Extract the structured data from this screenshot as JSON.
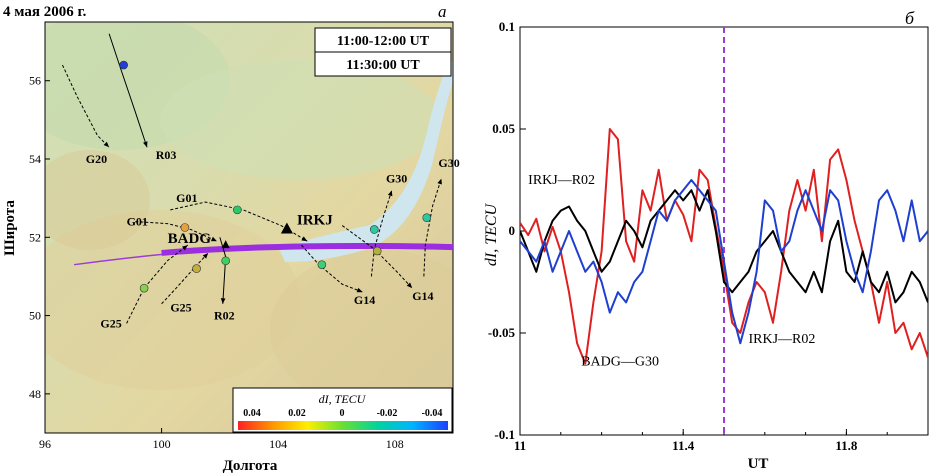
{
  "chart_data": [
    {
      "type": "map",
      "panel_letter": "а",
      "date_title": "4 мая 2006 г.",
      "time_range": "11:00-12:00 UT",
      "time_instant": "11:30:00 UT",
      "xlabel": "Долгота",
      "ylabel": "Широта",
      "xlim": [
        96,
        110
      ],
      "ylim": [
        47,
        57.5
      ],
      "xticks": [
        "96",
        "100",
        "104",
        "108"
      ],
      "yticks": [
        "48",
        "50",
        "52",
        "54",
        "56"
      ],
      "stations": [
        {
          "name": "IRKJ",
          "lon": 104.3,
          "lat": 52.2
        },
        {
          "name": "BADG",
          "lon": 102.2,
          "lat": 51.8
        }
      ],
      "tracks": [
        {
          "label": "R03",
          "style": "solid",
          "points": [
            [
              98.2,
              57.2
            ],
            [
              98.6,
              56.3
            ],
            [
              99.1,
              55.2
            ],
            [
              99.5,
              54.3
            ]
          ],
          "label_pos": [
            99.8,
            54.0
          ],
          "marker": [
            98.7,
            56.4
          ],
          "marker_color": "#1f3fd6"
        },
        {
          "label": "G20",
          "style": "dashed",
          "points": [
            [
              96.6,
              56.4
            ],
            [
              97.1,
              55.6
            ],
            [
              97.8,
              54.6
            ],
            [
              98.2,
              54.3
            ]
          ],
          "label_pos": [
            97.4,
            53.9
          ]
        },
        {
          "label": "G01",
          "style": "dashed",
          "points": [
            [
              100.3,
              52.7
            ],
            [
              101.5,
              52.9
            ],
            [
              102.8,
              52.7
            ],
            [
              104.1,
              52.3
            ],
            [
              105.0,
              51.9
            ]
          ],
          "label_pos": [
            100.5,
            52.9
          ],
          "marker": [
            102.6,
            52.7
          ],
          "marker_color": "#2ec86a"
        },
        {
          "label": "G01",
          "style": "dashed",
          "points": [
            [
              99.1,
              52.4
            ],
            [
              100.2,
              52.35
            ],
            [
              101.0,
              52.2
            ],
            [
              101.9,
              51.9
            ]
          ],
          "label_pos": [
            98.8,
            52.3
          ],
          "marker": [
            100.8,
            52.25
          ],
          "marker_color": "#e6a23c"
        },
        {
          "label": "G30",
          "style": "dashed",
          "points": [
            [
              107.2,
              51.0
            ],
            [
              107.3,
              51.7
            ],
            [
              107.6,
              52.5
            ],
            [
              107.9,
              53.2
            ]
          ],
          "label_pos": [
            107.7,
            53.4
          ],
          "marker": [
            107.3,
            52.2
          ],
          "marker_color": "#2ec8a0"
        },
        {
          "label": "G30",
          "style": "dashed",
          "points": [
            [
              109.0,
              51.0
            ],
            [
              109.05,
              51.8
            ],
            [
              109.3,
              52.8
            ],
            [
              109.6,
              53.5
            ]
          ],
          "label_pos": [
            109.5,
            53.8
          ],
          "marker": [
            109.1,
            52.5
          ],
          "marker_color": "#2ec8a0"
        },
        {
          "label": "G14",
          "style": "dashed",
          "points": [
            [
              104.8,
              51.8
            ],
            [
              105.4,
              51.3
            ],
            [
              106.2,
              50.8
            ],
            [
              106.9,
              50.6
            ]
          ],
          "label_pos": [
            106.6,
            50.3
          ],
          "marker": [
            105.5,
            51.3
          ],
          "marker_color": "#3ad07a"
        },
        {
          "label": "G14",
          "style": "dashed",
          "points": [
            [
              106.2,
              52.3
            ],
            [
              107.3,
              51.7
            ],
            [
              108.1,
              51.1
            ],
            [
              108.6,
              50.7
            ]
          ],
          "label_pos": [
            108.6,
            50.4
          ],
          "marker": [
            107.4,
            51.65
          ],
          "marker_color": "#b0b040"
        },
        {
          "label": "G25",
          "style": "dashed",
          "points": [
            [
              98.8,
              49.8
            ],
            [
              99.4,
              50.7
            ],
            [
              100.2,
              51.4
            ],
            [
              100.9,
              51.8
            ]
          ],
          "label_pos": [
            97.9,
            49.7
          ],
          "marker": [
            99.4,
            50.7
          ],
          "marker_color": "#8ad050"
        },
        {
          "label": "G25",
          "style": "dashed",
          "points": [
            [
              100.0,
              50.3
            ],
            [
              100.5,
              50.7
            ],
            [
              101.1,
              51.2
            ],
            [
              101.6,
              51.6
            ]
          ],
          "label_pos": [
            100.3,
            50.1
          ],
          "marker": [
            101.2,
            51.2
          ],
          "marker_color": "#c0b040"
        },
        {
          "label": "R02",
          "style": "solid",
          "points": [
            [
              102.0,
              52.0
            ],
            [
              102.2,
              51.5
            ],
            [
              102.15,
              50.9
            ],
            [
              102.1,
              50.3
            ]
          ],
          "label_pos": [
            101.8,
            49.9
          ],
          "marker": [
            102.2,
            51.4
          ],
          "marker_color": "#40d060"
        }
      ],
      "colorbar": {
        "label": "dI, TECU",
        "ticks": [
          "0.04",
          "0.02",
          "0",
          "-0.02",
          "-0.04"
        ],
        "colors": [
          "#ff2020",
          "#ff9900",
          "#ffee00",
          "#66e033",
          "#00d2a0",
          "#00b4ff",
          "#1e40ff"
        ]
      }
    },
    {
      "type": "line",
      "panel_letter": "б",
      "xlabel": "UT",
      "ylabel": "dI, TECU",
      "xlim": [
        11,
        12
      ],
      "ylim": [
        -0.1,
        0.1
      ],
      "xticks": [
        "11",
        "11.4",
        "11.8"
      ],
      "yticks": [
        "-0.1",
        "-0.05",
        "0",
        "0.05",
        "0.1"
      ],
      "vline_x": 11.5,
      "series": [
        {
          "name": "BADG—G30",
          "color": "#e02020",
          "label_pos": [
            11.15,
            -0.066
          ],
          "x": [
            11.0,
            11.02,
            11.04,
            11.06,
            11.08,
            11.1,
            11.12,
            11.14,
            11.16,
            11.18,
            11.2,
            11.22,
            11.24,
            11.26,
            11.28,
            11.3,
            11.32,
            11.34,
            11.36,
            11.38,
            11.4,
            11.42,
            11.44,
            11.46,
            11.48,
            11.5,
            11.52,
            11.54,
            11.56,
            11.58,
            11.6,
            11.62,
            11.64,
            11.66,
            11.68,
            11.7,
            11.72,
            11.74,
            11.76,
            11.78,
            11.8,
            11.82,
            11.84,
            11.86,
            11.88,
            11.9,
            11.92,
            11.94,
            11.96,
            11.98,
            12.0
          ],
          "y": [
            0.004,
            -0.002,
            0.006,
            -0.01,
            0.002,
            -0.01,
            -0.03,
            -0.055,
            -0.065,
            -0.035,
            -0.01,
            0.05,
            0.045,
            -0.005,
            -0.015,
            0.02,
            0.01,
            0.03,
            0.005,
            0.015,
            0.008,
            -0.005,
            0.03,
            0.025,
            0.002,
            -0.02,
            -0.045,
            -0.05,
            -0.035,
            -0.025,
            -0.03,
            -0.045,
            -0.02,
            0.01,
            0.025,
            0.01,
            0.03,
            -0.005,
            0.035,
            0.04,
            0.025,
            0.005,
            -0.01,
            -0.025,
            -0.045,
            -0.025,
            -0.05,
            -0.045,
            -0.058,
            -0.05,
            -0.062
          ]
        },
        {
          "name": "IRKJ—R02",
          "color": "#000000",
          "label_pos": [
            11.02,
            0.023
          ],
          "x": [
            11.0,
            11.02,
            11.04,
            11.06,
            11.08,
            11.1,
            11.12,
            11.14,
            11.16,
            11.18,
            11.2,
            11.22,
            11.24,
            11.26,
            11.28,
            11.3,
            11.32,
            11.34,
            11.36,
            11.38,
            11.4,
            11.42,
            11.44,
            11.46,
            11.48,
            11.5,
            11.52,
            11.54,
            11.56,
            11.58,
            11.6,
            11.62,
            11.64,
            11.66,
            11.68,
            11.7,
            11.72,
            11.74,
            11.76,
            11.78,
            11.8,
            11.82,
            11.84,
            11.86,
            11.88,
            11.9,
            11.92,
            11.94,
            11.96,
            11.98,
            12.0
          ],
          "y": [
            0.0,
            -0.01,
            -0.02,
            -0.005,
            0.005,
            0.01,
            0.012,
            0.005,
            0.0,
            -0.01,
            -0.02,
            -0.015,
            -0.005,
            0.005,
            0.0,
            -0.008,
            0.005,
            0.01,
            0.015,
            0.02,
            0.015,
            0.02,
            0.01,
            0.02,
            0.0,
            -0.025,
            -0.03,
            -0.025,
            -0.02,
            -0.01,
            -0.005,
            0.0,
            -0.01,
            -0.02,
            -0.025,
            -0.03,
            -0.02,
            -0.03,
            -0.005,
            0.005,
            -0.02,
            -0.025,
            -0.01,
            -0.025,
            -0.03,
            -0.02,
            -0.035,
            -0.03,
            -0.02,
            -0.025,
            -0.035
          ]
        },
        {
          "name": "IRKJ—R02",
          "color": "#1e3fcf",
          "label_pos": [
            11.56,
            -0.055
          ],
          "x": [
            11.0,
            11.02,
            11.04,
            11.06,
            11.08,
            11.1,
            11.12,
            11.14,
            11.16,
            11.18,
            11.2,
            11.22,
            11.24,
            11.26,
            11.28,
            11.3,
            11.32,
            11.34,
            11.36,
            11.38,
            11.4,
            11.42,
            11.44,
            11.46,
            11.48,
            11.5,
            11.52,
            11.54,
            11.56,
            11.58,
            11.6,
            11.62,
            11.64,
            11.66,
            11.68,
            11.7,
            11.72,
            11.74,
            11.76,
            11.78,
            11.8,
            11.82,
            11.84,
            11.86,
            11.88,
            11.9,
            11.92,
            11.94,
            11.96,
            11.98,
            12.0
          ],
          "y": [
            -0.005,
            -0.01,
            -0.015,
            -0.005,
            -0.02,
            -0.01,
            0.0,
            -0.01,
            -0.02,
            -0.015,
            -0.025,
            -0.04,
            -0.03,
            -0.035,
            -0.025,
            -0.02,
            -0.005,
            0.01,
            0.005,
            0.015,
            0.02,
            0.025,
            0.02,
            0.015,
            0.01,
            -0.015,
            -0.04,
            -0.055,
            -0.04,
            -0.02,
            0.015,
            0.01,
            -0.01,
            -0.005,
            0.01,
            0.02,
            0.01,
            0.0,
            0.02,
            0.015,
            -0.005,
            -0.02,
            -0.03,
            -0.01,
            0.015,
            0.02,
            0.01,
            -0.005,
            0.015,
            -0.005,
            0.0
          ]
        }
      ]
    }
  ]
}
